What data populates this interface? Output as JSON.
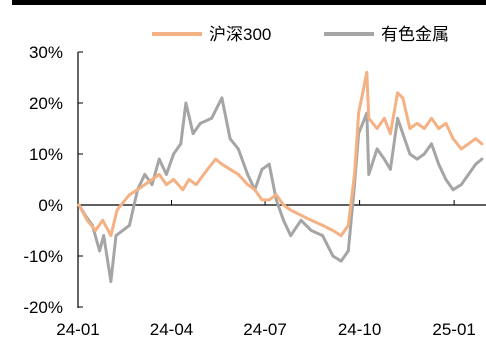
{
  "chart_data": {
    "type": "line",
    "title": "",
    "xlabel": "",
    "ylabel": "",
    "x_tick_labels": [
      "24-01",
      "24-04",
      "24-07",
      "24-10",
      "25-01"
    ],
    "y_tick_labels": [
      "30%",
      "20%",
      "10%",
      "0%",
      "-10%",
      "-20%"
    ],
    "ylim": [
      -20,
      30
    ],
    "y_unit": "%",
    "grid": false,
    "legend_position": "top",
    "series": [
      {
        "name": "沪深300",
        "color": "#F4B183",
        "points": [
          [
            "2024-01-02",
            0
          ],
          [
            "2024-01-10",
            -3
          ],
          [
            "2024-01-18",
            -5
          ],
          [
            "2024-01-25",
            -3
          ],
          [
            "2024-02-02",
            -6
          ],
          [
            "2024-02-08",
            -1
          ],
          [
            "2024-02-20",
            2
          ],
          [
            "2024-02-28",
            3
          ],
          [
            "2024-03-06",
            4
          ],
          [
            "2024-03-13",
            5
          ],
          [
            "2024-03-20",
            6
          ],
          [
            "2024-03-27",
            4
          ],
          [
            "2024-04-03",
            5
          ],
          [
            "2024-04-12",
            3
          ],
          [
            "2024-04-18",
            5
          ],
          [
            "2024-04-25",
            4
          ],
          [
            "2024-05-06",
            7
          ],
          [
            "2024-05-14",
            9
          ],
          [
            "2024-05-20",
            8
          ],
          [
            "2024-05-28",
            7
          ],
          [
            "2024-06-05",
            6
          ],
          [
            "2024-06-14",
            4
          ],
          [
            "2024-06-21",
            3
          ],
          [
            "2024-06-28",
            1
          ],
          [
            "2024-07-05",
            1
          ],
          [
            "2024-07-12",
            2
          ],
          [
            "2024-07-19",
            0
          ],
          [
            "2024-07-26",
            -1
          ],
          [
            "2024-08-05",
            -2
          ],
          [
            "2024-08-15",
            -3
          ],
          [
            "2024-08-26",
            -4
          ],
          [
            "2024-09-05",
            -5
          ],
          [
            "2024-09-13",
            -6
          ],
          [
            "2024-09-20",
            -4
          ],
          [
            "2024-09-26",
            6
          ],
          [
            "2024-09-30",
            18
          ],
          [
            "2024-10-08",
            26
          ],
          [
            "2024-10-10",
            17
          ],
          [
            "2024-10-18",
            15
          ],
          [
            "2024-10-25",
            17
          ],
          [
            "2024-10-31",
            14
          ],
          [
            "2024-11-07",
            22
          ],
          [
            "2024-11-12",
            21
          ],
          [
            "2024-11-19",
            15
          ],
          [
            "2024-11-26",
            16
          ],
          [
            "2024-12-03",
            15
          ],
          [
            "2024-12-10",
            17
          ],
          [
            "2024-12-17",
            15
          ],
          [
            "2024-12-24",
            16
          ],
          [
            "2024-12-31",
            13
          ],
          [
            "2025-01-08",
            11
          ],
          [
            "2025-01-15",
            12
          ],
          [
            "2025-01-22",
            13
          ],
          [
            "2025-01-28",
            12
          ]
        ]
      },
      {
        "name": "有色金属",
        "color": "#A5A5A5",
        "points": [
          [
            "2024-01-02",
            0
          ],
          [
            "2024-01-08",
            -2
          ],
          [
            "2024-01-15",
            -4
          ],
          [
            "2024-01-22",
            -9
          ],
          [
            "2024-01-26",
            -6
          ],
          [
            "2024-02-02",
            -15
          ],
          [
            "2024-02-07",
            -6
          ],
          [
            "2024-02-20",
            -4
          ],
          [
            "2024-02-28",
            3
          ],
          [
            "2024-03-06",
            6
          ],
          [
            "2024-03-13",
            4
          ],
          [
            "2024-03-20",
            9
          ],
          [
            "2024-03-27",
            6
          ],
          [
            "2024-04-03",
            10
          ],
          [
            "2024-04-10",
            12
          ],
          [
            "2024-04-15",
            20
          ],
          [
            "2024-04-22",
            14
          ],
          [
            "2024-04-29",
            16
          ],
          [
            "2024-05-10",
            17
          ],
          [
            "2024-05-20",
            21
          ],
          [
            "2024-05-28",
            13
          ],
          [
            "2024-06-05",
            11
          ],
          [
            "2024-06-14",
            6
          ],
          [
            "2024-06-21",
            3
          ],
          [
            "2024-06-28",
            7
          ],
          [
            "2024-07-05",
            8
          ],
          [
            "2024-07-12",
            1
          ],
          [
            "2024-07-19",
            -3
          ],
          [
            "2024-07-26",
            -6
          ],
          [
            "2024-08-05",
            -3
          ],
          [
            "2024-08-15",
            -5
          ],
          [
            "2024-08-26",
            -6
          ],
          [
            "2024-09-05",
            -10
          ],
          [
            "2024-09-13",
            -11
          ],
          [
            "2024-09-20",
            -9
          ],
          [
            "2024-09-26",
            4
          ],
          [
            "2024-09-30",
            14
          ],
          [
            "2024-10-08",
            18
          ],
          [
            "2024-10-10",
            6
          ],
          [
            "2024-10-18",
            11
          ],
          [
            "2024-10-25",
            9
          ],
          [
            "2024-10-31",
            7
          ],
          [
            "2024-11-07",
            17
          ],
          [
            "2024-11-12",
            14
          ],
          [
            "2024-11-19",
            10
          ],
          [
            "2024-11-26",
            9
          ],
          [
            "2024-12-03",
            10
          ],
          [
            "2024-12-10",
            12
          ],
          [
            "2024-12-17",
            8
          ],
          [
            "2024-12-24",
            5
          ],
          [
            "2024-12-31",
            3
          ],
          [
            "2025-01-08",
            4
          ],
          [
            "2025-01-15",
            6
          ],
          [
            "2025-01-22",
            8
          ],
          [
            "2025-01-28",
            9
          ]
        ]
      }
    ]
  }
}
